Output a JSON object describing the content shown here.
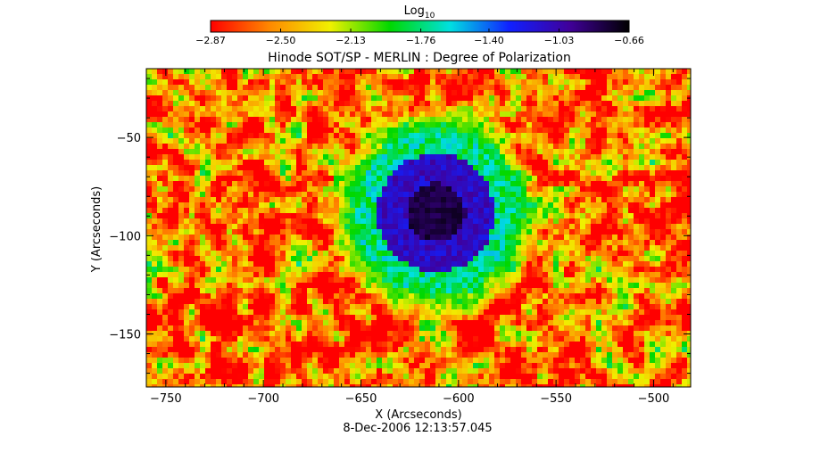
{
  "chart_data": {
    "type": "heatmap",
    "title": "Hinode SOT/SP - MERLIN : Degree of Polarization",
    "xlabel": "X (Arcseconds)",
    "ylabel": "Y (Arcseconds)",
    "timestamp": "8-Dec-2006 12:13:57.045",
    "xlim": [
      -760,
      -481
    ],
    "ylim": [
      -177,
      -15
    ],
    "x_ticks": [
      -750,
      -700,
      -650,
      -600,
      -550,
      -500
    ],
    "y_ticks": [
      -50,
      -100,
      -150
    ],
    "x_tick_labels": [
      "−750",
      "−700",
      "−650",
      "−600",
      "−550",
      "−500"
    ],
    "y_tick_labels": [
      "−50",
      "−100",
      "−150"
    ],
    "colorbar": {
      "label_base": "Log",
      "label_sub": "10",
      "min": -2.87,
      "max": -0.66,
      "ticks": [
        -2.87,
        -2.5,
        -2.13,
        -1.76,
        -1.4,
        -1.03,
        -0.66
      ],
      "tick_labels": [
        "−2.87",
        "−2.50",
        "−2.13",
        "−1.76",
        "−1.40",
        "−1.03",
        "−0.66"
      ],
      "colors": [
        "#ff0000",
        "#ff8a00",
        "#f0f000",
        "#00d800",
        "#00e0e0",
        "#1020ff",
        "#40009a",
        "#000000"
      ]
    },
    "features": {
      "sunspot_umbra_center": [
        -613,
        -87
      ],
      "sunspot_umbra_radius_arcsec": 15,
      "penumbra_radius_arcsec": 40,
      "penumbra_value_log10": -1.1,
      "umbra_value_log10": -0.8,
      "quiet_sun_value_log10": -2.6
    }
  }
}
